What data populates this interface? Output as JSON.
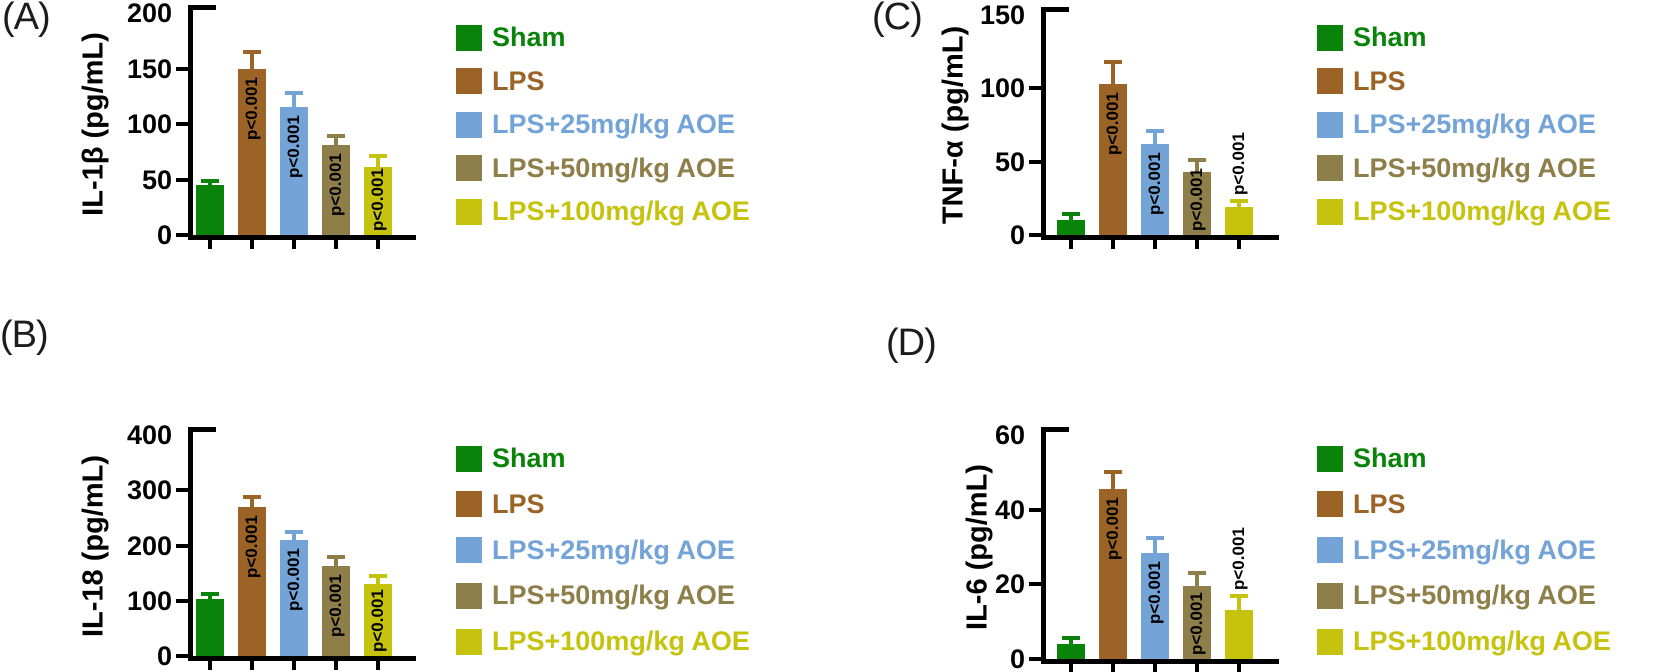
{
  "figure": {
    "background": "#ffffff",
    "axis_color": "#000000",
    "annotation_color": "#000000"
  },
  "legend": {
    "position": "right",
    "items": [
      {
        "label": "Sham",
        "color": "#0a830a"
      },
      {
        "label": "LPS",
        "color": "#9b6426"
      },
      {
        "label": "LPS+25mg/kg AOE",
        "color": "#74a3d7"
      },
      {
        "label": "LPS+50mg/kg AOE",
        "color": "#8e7e4a"
      },
      {
        "label": "LPS+100mg/kg AOE",
        "color": "#c6c30f"
      }
    ]
  },
  "chart_data": [
    {
      "panel": "(A)",
      "type": "bar",
      "title": "",
      "ylabel": "IL-1β (pg/mL)",
      "xlabel": "",
      "ylim": [
        0,
        200
      ],
      "yticks": [
        0,
        50,
        100,
        150,
        200
      ],
      "categories": [
        "Sham",
        "LPS",
        "LPS+25mg/kg AOE",
        "LPS+50mg/kg AOE",
        "LPS+100mg/kg AOE"
      ],
      "values": [
        45,
        150,
        115,
        81,
        61
      ],
      "errors_plus": [
        4,
        15,
        13,
        8,
        10
      ],
      "annotations": [
        null,
        "p<0.001",
        "p<0.001",
        "p<0.001",
        "p<0.001"
      ],
      "annotation_positions": [
        null,
        "inside",
        "inside",
        "inside",
        "inside"
      ],
      "x_tick_labels": [],
      "grid": false,
      "legend_position": "right"
    },
    {
      "panel": "(B)",
      "type": "bar",
      "title": "",
      "ylabel": "IL-18 (pg/mL)",
      "xlabel": "",
      "ylim": [
        0,
        400
      ],
      "yticks": [
        0,
        100,
        200,
        300,
        400
      ],
      "categories": [
        "Sham",
        "LPS",
        "LPS+25mg/kg AOE",
        "LPS+50mg/kg AOE",
        "LPS+100mg/kg AOE"
      ],
      "values": [
        104,
        270,
        210,
        163,
        130
      ],
      "errors_plus": [
        8,
        18,
        14,
        16,
        14
      ],
      "annotations": [
        null,
        "p<0.001",
        "p<0.001",
        "p<0.001",
        "p<0.001"
      ],
      "annotation_positions": [
        null,
        "inside",
        "inside",
        "inside",
        "inside"
      ],
      "x_tick_labels": [],
      "grid": false,
      "legend_position": "right"
    },
    {
      "panel": "(C)",
      "type": "bar",
      "title": "",
      "ylabel": "TNF-α (pg/mL)",
      "xlabel": "",
      "ylim": [
        0,
        150
      ],
      "yticks": [
        0,
        50,
        100,
        150
      ],
      "categories": [
        "Sham",
        "LPS",
        "LPS+25mg/kg AOE",
        "LPS+50mg/kg AOE",
        "LPS+100mg/kg AOE"
      ],
      "values": [
        10,
        103,
        62,
        43,
        19
      ],
      "errors_plus": [
        4,
        15,
        9,
        8,
        4
      ],
      "annotations": [
        null,
        "p<0.001",
        "p<0.001",
        "p<0.001",
        "p<0.001"
      ],
      "annotation_positions": [
        null,
        "inside",
        "inside",
        "inside",
        "above"
      ],
      "x_tick_labels": [],
      "grid": false,
      "legend_position": "right"
    },
    {
      "panel": "(D)",
      "type": "bar",
      "title": "",
      "ylabel": "IL-6 (pg/mL)",
      "xlabel": "",
      "ylim": [
        0,
        60
      ],
      "yticks": [
        0,
        20,
        40,
        60
      ],
      "categories": [
        "Sham",
        "LPS",
        "LPS+25mg/kg AOE",
        "LPS+50mg/kg AOE",
        "LPS+100mg/kg AOE"
      ],
      "values": [
        4,
        45.5,
        28.5,
        19.5,
        13
      ],
      "errors_plus": [
        1.5,
        4.5,
        4,
        3.5,
        4
      ],
      "annotations": [
        null,
        "p<0.001",
        "p<0.001",
        "p<0.001",
        "p<0.001"
      ],
      "annotation_positions": [
        null,
        "inside",
        "inside",
        "inside",
        "above"
      ],
      "x_tick_labels": [],
      "grid": false,
      "legend_position": "right"
    }
  ]
}
